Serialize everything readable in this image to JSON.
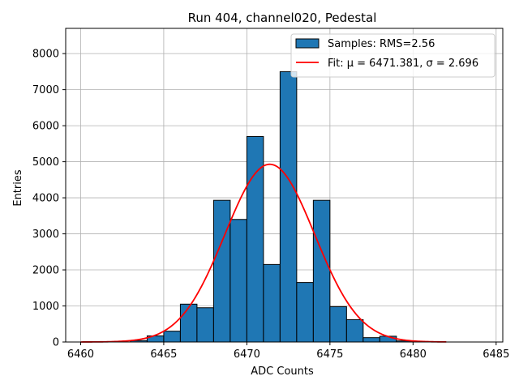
{
  "chart_data": {
    "type": "bar",
    "title": "Run 404, channel020, Pedestal",
    "xlabel": "ADC Counts",
    "ylabel": "Entries",
    "xlim": [
      6459.1,
      6485.4
    ],
    "ylim": [
      0,
      8700
    ],
    "xticks": [
      6460,
      6465,
      6470,
      6475,
      6480,
      6485
    ],
    "yticks": [
      0,
      1000,
      2000,
      3000,
      4000,
      5000,
      6000,
      7000,
      8000
    ],
    "grid": true,
    "legend_position": "top-right",
    "bar_color": "#1f77b4",
    "fit_color": "#ff0000",
    "series": [
      {
        "name": "Samples: RMS=2.56",
        "bins": [
          {
            "x0": 6463,
            "x1": 6464,
            "value": 40
          },
          {
            "x0": 6464,
            "x1": 6465,
            "value": 170
          },
          {
            "x0": 6465,
            "x1": 6466,
            "value": 300
          },
          {
            "x0": 6466,
            "x1": 6467,
            "value": 1050
          },
          {
            "x0": 6467,
            "x1": 6468,
            "value": 950
          },
          {
            "x0": 6468,
            "x1": 6469,
            "value": 3930
          },
          {
            "x0": 6469,
            "x1": 6470,
            "value": 3400
          },
          {
            "x0": 6470,
            "x1": 6471,
            "value": 5700
          },
          {
            "x0": 6471,
            "x1": 6472,
            "value": 2150
          },
          {
            "x0": 6472,
            "x1": 6473,
            "value": 7500
          },
          {
            "x0": 6473,
            "x1": 6474,
            "value": 1650
          },
          {
            "x0": 6474,
            "x1": 6475,
            "value": 3930
          },
          {
            "x0": 6475,
            "x1": 6476,
            "value": 980
          },
          {
            "x0": 6476,
            "x1": 6477,
            "value": 620
          },
          {
            "x0": 6477,
            "x1": 6478,
            "value": 120
          },
          {
            "x0": 6478,
            "x1": 6479,
            "value": 160
          },
          {
            "x0": 6479,
            "x1": 6480,
            "value": 30
          }
        ]
      },
      {
        "name": "Fit: μ = 6471.381, σ = 2.696",
        "type": "gaussian",
        "mu": 6471.381,
        "sigma": 2.696,
        "amplitude": 4930,
        "x_range": [
          6460,
          6482
        ]
      }
    ]
  }
}
